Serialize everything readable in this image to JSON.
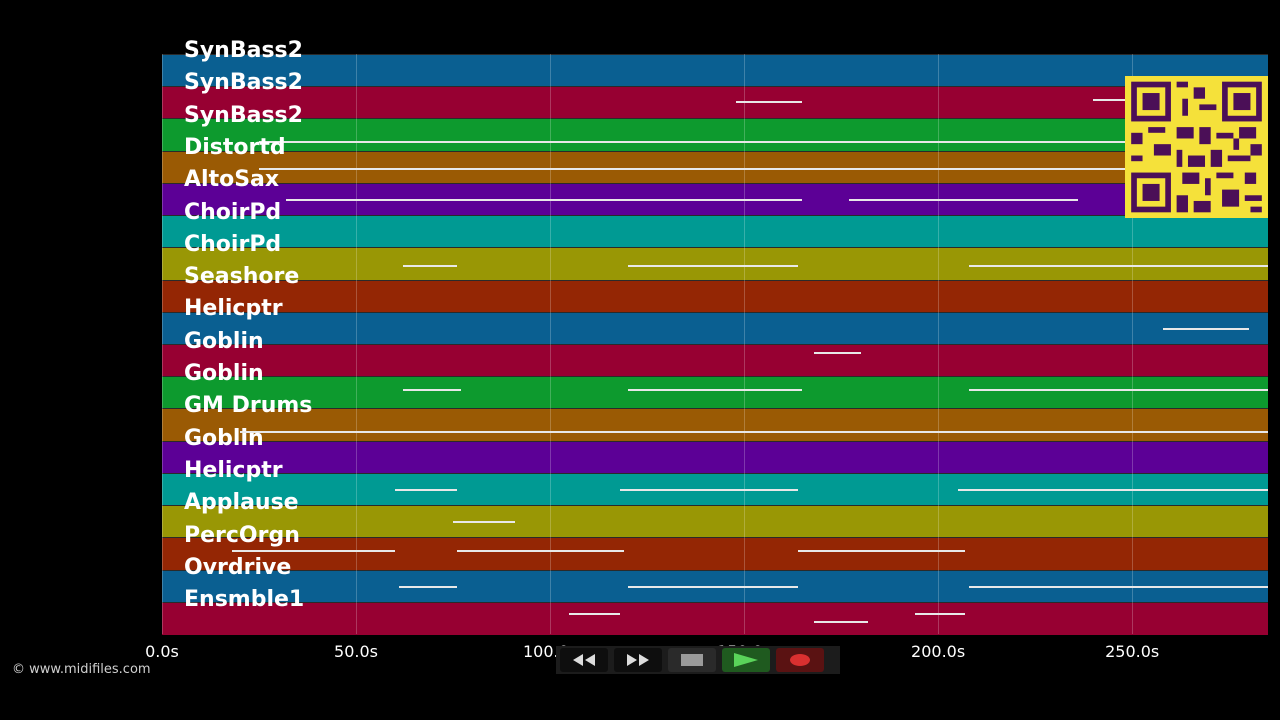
{
  "tracks": [
    {
      "label": "SynBass2",
      "color": "#0a5f91"
    },
    {
      "label": "SynBass2",
      "color": "#970032"
    },
    {
      "label": "SynBass2",
      "color": "#0d9a2e"
    },
    {
      "label": "Distortd",
      "color": "#9a5a04"
    },
    {
      "label": "AltoSax",
      "color": "#5c0096"
    },
    {
      "label": "ChoirPd",
      "color": "#009a93"
    },
    {
      "label": "ChoirPd",
      "color": "#999705"
    },
    {
      "label": "Seashore",
      "color": "#942604"
    },
    {
      "label": "Helicptr",
      "color": "#0a5f91"
    },
    {
      "label": "Goblin",
      "color": "#970032"
    },
    {
      "label": "Goblin",
      "color": "#0d9a2e"
    },
    {
      "label": "GM Drums",
      "color": "#9a5a04"
    },
    {
      "label": "Goblin",
      "color": "#5c0096"
    },
    {
      "label": "Helicptr",
      "color": "#009a93"
    },
    {
      "label": "Applause",
      "color": "#999705"
    },
    {
      "label": "PercOrgn",
      "color": "#942604"
    },
    {
      "label": "Ovrdrive",
      "color": "#0a5f91"
    },
    {
      "label": "Ensmble1",
      "color": "#970032"
    }
  ],
  "timeline": {
    "ticks": [
      "0.0s",
      "50.0s",
      "100.0s",
      "150.0s",
      "200.0s",
      "250.0s"
    ],
    "tick_values": [
      0,
      50,
      100,
      150,
      200,
      250
    ],
    "max_seconds": 285
  },
  "transport": {
    "rewind_icon": "rewind-icon",
    "forward_icon": "fast-forward-icon",
    "stop_icon": "stop-icon",
    "play_icon": "play-icon",
    "record_icon": "record-icon"
  },
  "credit": "© www.midifiles.com"
}
